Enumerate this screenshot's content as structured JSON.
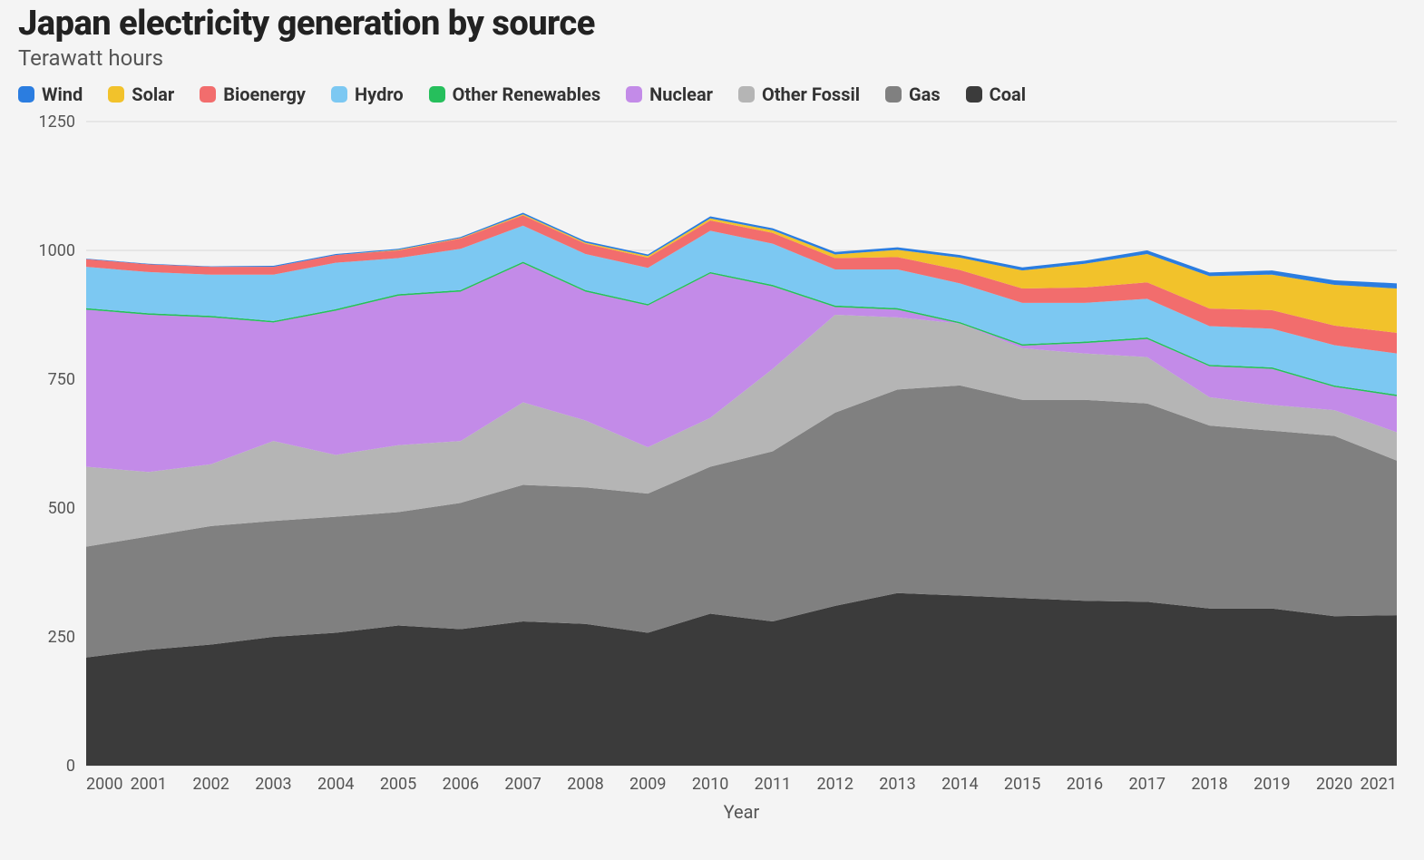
{
  "title": "Japan electricity generation by source",
  "subtitle": "Terawatt hours",
  "xaxis_label": "Year",
  "chart": {
    "type": "stacked-area",
    "background_color": "#f4f4f4",
    "grid_color": "#d9d9d9",
    "label_color": "#555555",
    "title_fontsize": 38,
    "subtitle_fontsize": 24,
    "legend_fontsize": 20,
    "tick_fontsize": 18,
    "years": [
      2000,
      2001,
      2002,
      2003,
      2004,
      2005,
      2006,
      2007,
      2008,
      2009,
      2010,
      2011,
      2012,
      2013,
      2014,
      2015,
      2016,
      2017,
      2018,
      2019,
      2020,
      2021
    ],
    "ylim": [
      0,
      1250
    ],
    "ytick_step": 250,
    "yticks": [
      0,
      250,
      500,
      750,
      1000,
      1250
    ],
    "series": [
      {
        "name": "Coal",
        "color": "#3b3b3b",
        "values": [
          210,
          225,
          235,
          250,
          258,
          272,
          265,
          280,
          275,
          258,
          295,
          280,
          310,
          335,
          330,
          325,
          320,
          318,
          305,
          305,
          290,
          292
        ]
      },
      {
        "name": "Gas",
        "color": "#808080",
        "values": [
          215,
          220,
          230,
          225,
          225,
          220,
          245,
          265,
          265,
          270,
          285,
          330,
          375,
          395,
          408,
          385,
          390,
          385,
          355,
          345,
          350,
          300
        ]
      },
      {
        "name": "Other Fossil",
        "color": "#b5b5b5",
        "values": [
          155,
          125,
          120,
          155,
          120,
          130,
          120,
          160,
          130,
          90,
          95,
          160,
          190,
          140,
          120,
          100,
          90,
          90,
          55,
          50,
          50,
          55
        ]
      },
      {
        "name": "Nuclear",
        "color": "#c38be8",
        "values": [
          305,
          305,
          285,
          230,
          280,
          290,
          290,
          270,
          250,
          275,
          280,
          160,
          15,
          15,
          0,
          5,
          20,
          35,
          60,
          70,
          45,
          70
        ]
      },
      {
        "name": "Other Renewables",
        "color": "#26bf5c",
        "values": [
          3,
          3,
          3,
          3,
          3,
          3,
          3,
          3,
          3,
          3,
          3,
          3,
          3,
          3,
          3,
          3,
          3,
          3,
          3,
          3,
          3,
          3
        ]
      },
      {
        "name": "Hydro",
        "color": "#7cc8f2",
        "values": [
          80,
          80,
          80,
          90,
          90,
          70,
          80,
          70,
          70,
          70,
          80,
          80,
          70,
          75,
          75,
          80,
          75,
          75,
          75,
          75,
          78,
          80
        ]
      },
      {
        "name": "Bioenergy",
        "color": "#f26d6d",
        "values": [
          15,
          15,
          15,
          15,
          15,
          15,
          20,
          20,
          20,
          20,
          20,
          21,
          22,
          24,
          26,
          28,
          30,
          32,
          34,
          36,
          38,
          40
        ]
      },
      {
        "name": "Solar",
        "color": "#f2c22b",
        "values": [
          0,
          0,
          0,
          0,
          0,
          1,
          1,
          2,
          2,
          3,
          4,
          5,
          7,
          14,
          24,
          35,
          46,
          55,
          63,
          69,
          79,
          86
        ]
      },
      {
        "name": "Wind",
        "color": "#2b7de0",
        "values": [
          1,
          1,
          1,
          2,
          2,
          2,
          2,
          3,
          3,
          3,
          4,
          4,
          5,
          5,
          5,
          6,
          6,
          7,
          7,
          8,
          9,
          10
        ]
      }
    ],
    "legend_order": [
      "Wind",
      "Solar",
      "Bioenergy",
      "Hydro",
      "Other Renewables",
      "Nuclear",
      "Other Fossil",
      "Gas",
      "Coal"
    ]
  }
}
